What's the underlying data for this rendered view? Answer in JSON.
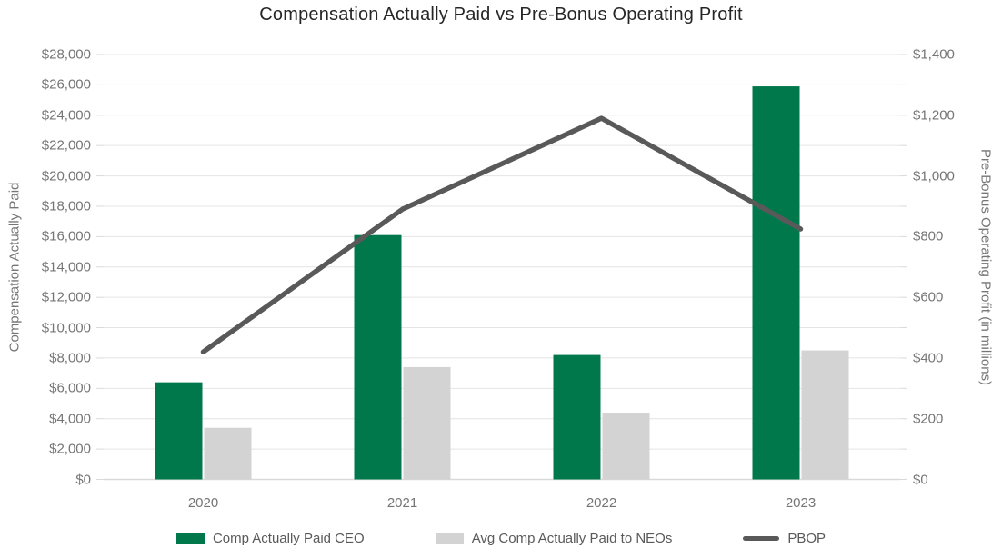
{
  "title": "Compensation Actually Paid vs Pre-Bonus Operating Profit",
  "chart_data": {
    "type": "bar+line combo, dual axis",
    "categories": [
      "2020",
      "2021",
      "2022",
      "2023"
    ],
    "series": [
      {
        "name": "Comp Actually Paid CEO",
        "type": "bar",
        "axis": "left",
        "color": "#00784B",
        "values": [
          6400,
          16100,
          8200,
          25900
        ]
      },
      {
        "name": "Avg Comp Actually Paid to NEOs",
        "type": "bar",
        "axis": "left",
        "color": "#D3D3D3",
        "values": [
          3400,
          7400,
          4400,
          8500
        ]
      },
      {
        "name": "PBOP",
        "type": "line",
        "axis": "right",
        "color": "#595959",
        "values": [
          420,
          890,
          1190,
          825
        ]
      }
    ],
    "left_axis": {
      "label": "Compensation Actually Paid",
      "min": 0,
      "max": 28000,
      "step": 2000,
      "tick_format": "$#,##0"
    },
    "right_axis": {
      "label": "Pre-Bonus Operating Profit (in millions)",
      "min": 0,
      "max": 1400,
      "step": 200,
      "tick_format": "$#,##0"
    },
    "grid": true,
    "legend_position": "bottom"
  },
  "colors": {
    "gridline": "#E4E4E4",
    "baseline": "#D9D9D9",
    "tick_mark": "#D9D9D9"
  }
}
